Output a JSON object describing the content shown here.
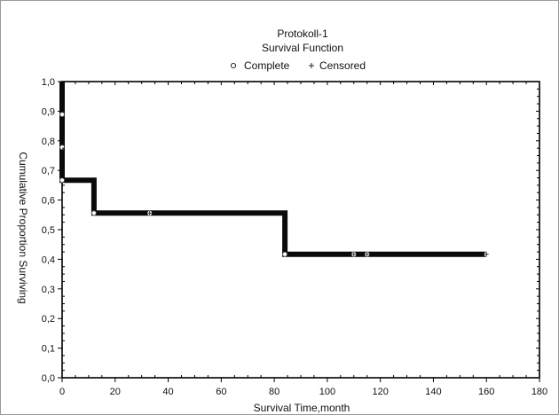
{
  "chart_data": {
    "type": "line",
    "title": "Protokoll-1",
    "subtitle": "Survival Function",
    "xlabel": "Survival Time,month",
    "ylabel": "Cumulative Proportion Surviving",
    "xlim": [
      0,
      180
    ],
    "ylim": [
      0,
      1
    ],
    "xticks": [
      "0",
      "20",
      "40",
      "60",
      "80",
      "100",
      "120",
      "140",
      "160",
      "180"
    ],
    "yticks": [
      "0,0",
      "0,1",
      "0,2",
      "0,3",
      "0,4",
      "0,5",
      "0,6",
      "0,7",
      "0,8",
      "0,9",
      "1,0"
    ],
    "legend": [
      {
        "label": "Complete",
        "marker": "circle"
      },
      {
        "label": "Censored",
        "marker": "plus"
      }
    ],
    "legend_position": "top",
    "grid": false,
    "step_function": {
      "x": [
        0,
        0,
        0,
        0,
        12,
        12,
        84,
        84,
        160
      ],
      "y": [
        1.0,
        0.889,
        0.778,
        0.667,
        0.667,
        0.556,
        0.556,
        0.417,
        0.417
      ]
    },
    "complete_events": [
      {
        "x": 0,
        "y": 0.889
      },
      {
        "x": 0,
        "y": 0.778
      },
      {
        "x": 0,
        "y": 0.667
      },
      {
        "x": 12,
        "y": 0.556
      },
      {
        "x": 84,
        "y": 0.417
      }
    ],
    "censored_events": [
      {
        "x": 33,
        "y": 0.556
      },
      {
        "x": 110,
        "y": 0.417
      },
      {
        "x": 115,
        "y": 0.417
      },
      {
        "x": 160,
        "y": 0.417
      }
    ],
    "colors": {
      "line": "#0a0a0a",
      "marker": "#ffffff",
      "axis": "#000000"
    }
  }
}
